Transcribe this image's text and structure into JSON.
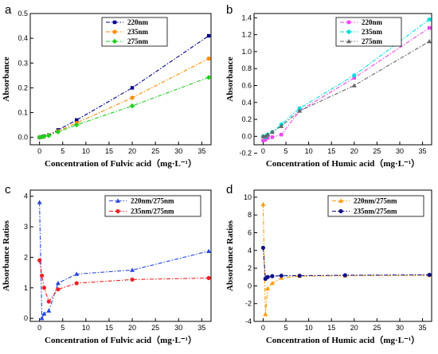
{
  "chart_data": [
    {
      "panel": "a",
      "type": "line",
      "xlabel": "Concentration of Fulvic acid（mg·L⁻¹）",
      "ylabel": "Absorbance",
      "xlim": [
        -2,
        37
      ],
      "ylim": [
        -0.03,
        0.5
      ],
      "xticks": [
        "0",
        "5",
        "10",
        "15",
        "20",
        "25",
        "30",
        "35"
      ],
      "yticks": [
        "0.0",
        "0.1",
        "0.2",
        "0.3",
        "0.4",
        "0.5"
      ],
      "grid": false,
      "legend_placement": "top-center",
      "x": [
        0,
        0.5,
        1,
        2,
        4,
        8,
        20,
        36.5
      ],
      "series": [
        {
          "name": "220nm",
          "color": "#00008b",
          "marker": "square",
          "values": [
            0.0,
            0.002,
            0.005,
            0.009,
            0.03,
            0.07,
            0.2,
            0.41
          ]
        },
        {
          "name": "235nm",
          "color": "#ff8c00",
          "marker": "circle",
          "values": [
            0.0,
            0.002,
            0.004,
            0.008,
            0.025,
            0.058,
            0.16,
            0.318
          ]
        },
        {
          "name": "275nm",
          "color": "#22cc22",
          "marker": "diamond",
          "values": [
            0.0,
            0.002,
            0.004,
            0.007,
            0.022,
            0.05,
            0.127,
            0.242
          ]
        }
      ]
    },
    {
      "panel": "b",
      "type": "line",
      "xlabel": "Concentration of Humic acid（mg·L⁻¹）",
      "ylabel": "Absorbance",
      "xlim": [
        -2,
        37
      ],
      "ylim": [
        -0.1,
        1.45
      ],
      "xticks": [
        "0",
        "5",
        "10",
        "15",
        "20",
        "25",
        "30",
        "35"
      ],
      "yticks": [
        "-0.2",
        "0.0",
        "0.2",
        "0.4",
        "0.6",
        "0.8",
        "1.0",
        "1.2",
        "1.4"
      ],
      "grid": false,
      "legend_placement": "top-center",
      "x": [
        0,
        0.5,
        1,
        2,
        4,
        8,
        20,
        36.5
      ],
      "series": [
        {
          "name": "220nm",
          "color": "#ee44ee",
          "marker": "square",
          "values": [
            -0.05,
            -0.04,
            -0.02,
            -0.01,
            0.02,
            0.3,
            0.69,
            1.28
          ]
        },
        {
          "name": "235nm",
          "color": "#00dddd",
          "marker": "circle",
          "values": [
            0.0,
            -0.01,
            0.02,
            0.05,
            0.14,
            0.33,
            0.72,
            1.38
          ]
        },
        {
          "name": "275nm",
          "color": "#666666",
          "marker": "triangle",
          "values": [
            0.0,
            0.0,
            0.02,
            0.05,
            0.12,
            0.3,
            0.6,
            1.12
          ]
        }
      ]
    },
    {
      "panel": "c",
      "type": "line",
      "xlabel": "Concentration of Fulvic acid（mg·L⁻¹）",
      "ylabel": "Absorbance Ratios",
      "xlim": [
        -2,
        37
      ],
      "ylim": [
        -0.1,
        4.2
      ],
      "xticks": [
        "0",
        "5",
        "10",
        "15",
        "20",
        "25",
        "30",
        "35"
      ],
      "yticks": [
        "0",
        "1",
        "2",
        "3",
        "4"
      ],
      "grid": false,
      "legend_placement": "top-center",
      "x": [
        0,
        0.5,
        1,
        2,
        4,
        8,
        20,
        36.5
      ],
      "series": [
        {
          "name": "220nm/275nm",
          "color": "#2244dd",
          "marker": "triangle",
          "values": [
            3.8,
            0.0,
            0.15,
            0.25,
            1.15,
            1.45,
            1.58,
            2.2
          ]
        },
        {
          "name": "235nm/275nm",
          "color": "#ee2222",
          "marker": "circle",
          "values": [
            1.9,
            1.4,
            1.0,
            0.55,
            0.95,
            1.15,
            1.27,
            1.32
          ]
        }
      ]
    },
    {
      "panel": "d",
      "type": "line",
      "xlabel": "Concentration of Humic acid（mg·L⁻¹）",
      "ylabel": "Absorbance Ratios",
      "xlim": [
        -2,
        37
      ],
      "ylim": [
        -4,
        10.8
      ],
      "xticks": [
        "0",
        "5",
        "10",
        "15",
        "20",
        "25",
        "30",
        "35"
      ],
      "yticks": [
        "-4",
        "-2",
        "0",
        "2",
        "4",
        "6",
        "8",
        "10"
      ],
      "grid": false,
      "legend_placement": "top-center",
      "x": [
        0,
        0.5,
        1,
        2,
        4,
        8,
        18,
        36.5
      ],
      "series": [
        {
          "name": "220nm/275nm",
          "color": "#ff9900",
          "marker": "triangle",
          "values": [
            9.2,
            -3.2,
            -0.3,
            0.3,
            0.9,
            1.1,
            1.15,
            1.2
          ]
        },
        {
          "name": "235nm/275nm",
          "color": "#111188",
          "marker": "circle",
          "values": [
            4.3,
            0.8,
            1.0,
            1.1,
            1.15,
            1.15,
            1.2,
            1.25
          ]
        }
      ]
    }
  ]
}
